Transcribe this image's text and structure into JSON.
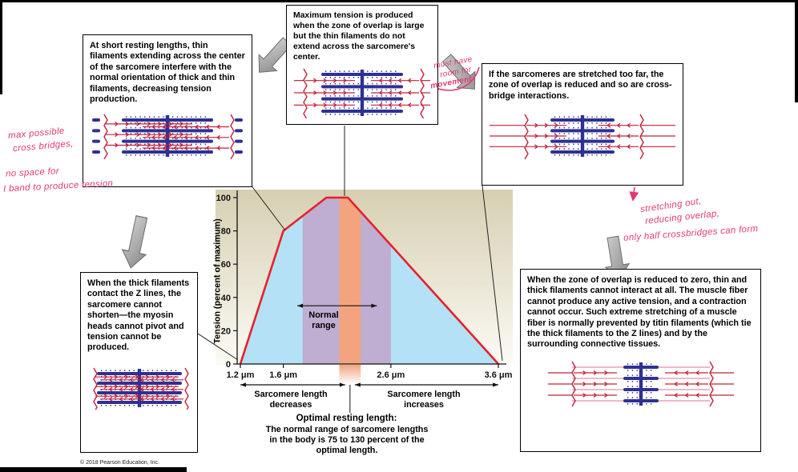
{
  "figure": {
    "copyright": "© 2018 Pearson Education, Inc."
  },
  "callouts": {
    "top_left": {
      "text": "At short resting lengths, thin filaments extending across the center of the sarcomere interfere with the normal orientation of thick and thin filaments, decreasing tension production.",
      "illustration": "sarcomere-short"
    },
    "top_center": {
      "text": "Maximum tension is produced when the zone of overlap is large but the thin filaments do not extend across the sarcomere's center.",
      "illustration": "sarcomere-optimal"
    },
    "top_right": {
      "text": "If the sarcomeres are stretched too far, the zone of overlap is reduced and so are cross-bridge interactions.",
      "illustration": "sarcomere-stretched"
    },
    "bottom_left": {
      "text": "When the thick filaments contact the Z lines, the sarcomere cannot shorten—the myosin heads cannot pivot and tension cannot be produced.",
      "illustration": "sarcomere-compressed"
    },
    "bottom_right": {
      "text": "When the zone of overlap is reduced to zero, thin and thick filaments cannot interact at all. The muscle fiber cannot produce any active tension, and a contraction cannot occur. Such extreme stretching of a muscle fiber is normally prevented by titin filaments (which tie the thick filaments to the Z lines) and by the surrounding connective tissues.",
      "illustration": "sarcomere-overstretched"
    }
  },
  "handwritten": {
    "left_1a": "max possible",
    "left_1b": "cross bridges,",
    "left_2a": "no space for",
    "left_2b": "I band to produce tension",
    "center_a": "must have",
    "center_b": "room for",
    "center_c": "movement",
    "right_a": "stretching out,",
    "right_b": "reducing overlap,",
    "right_c": "only half crossbridges can form"
  },
  "chart_labels": {
    "ylabel": "Tension (percent of maximum)",
    "normal_range": "Normal range",
    "left_span": "Sarcomere length decreases",
    "right_span": "Sarcomere length increases",
    "optimal_title": "Optimal resting length:",
    "optimal_body": "The normal range of sarcomere lengths in the body is 75 to 130 percent of the optimal length."
  },
  "chart_data": {
    "type": "line",
    "ylabel": "Tension (percent of maximum)",
    "xlim": [
      1.2,
      3.6
    ],
    "ylim": [
      0,
      100
    ],
    "grid": false,
    "series": [
      {
        "name": "tension-curve",
        "x": [
          1.2,
          1.6,
          2.0,
          2.2,
          3.6
        ],
        "y": [
          0,
          80,
          100,
          100,
          0
        ],
        "color": "#e8202a"
      }
    ],
    "xticks": [
      {
        "value": 1.2,
        "label": "1.2 μm"
      },
      {
        "value": 1.6,
        "label": "1.6 μm"
      },
      {
        "value": 2.6,
        "label": "2.6 μm"
      },
      {
        "value": 3.6,
        "label": "3.6 μm"
      }
    ],
    "yticks": [
      0,
      20,
      40,
      60,
      80,
      100
    ],
    "fill_under_curve": "#b5e1f7",
    "bands": [
      {
        "name": "normal-range",
        "from": 1.78,
        "to": 2.6,
        "color": "#bfadd2"
      },
      {
        "name": "optimal-resting-length",
        "from": 2.12,
        "to": 2.32,
        "color": "#f3a47e"
      }
    ],
    "normal_range_arrow": {
      "from": 1.73,
      "to": 2.47,
      "at_percent": 35
    }
  }
}
